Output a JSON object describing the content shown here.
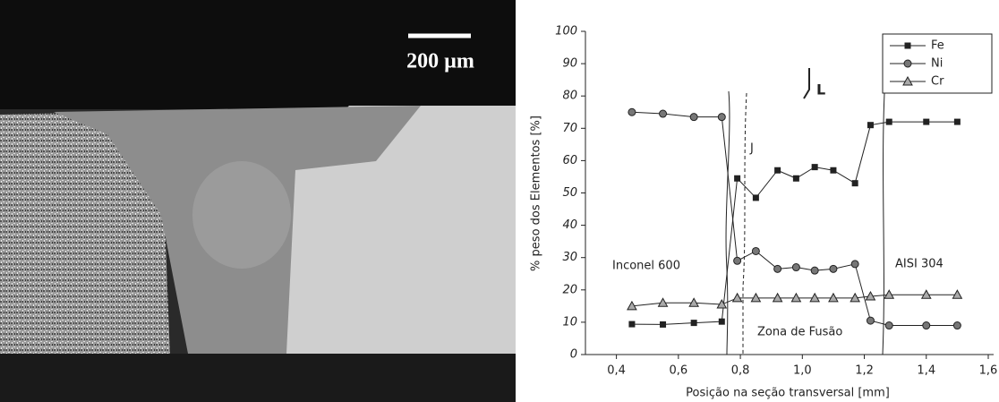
{
  "micrograph": {
    "scale_label": "200 µm"
  },
  "chart_data": {
    "type": "line",
    "x_label": "Posição na seção transversal [mm]",
    "y_label": "% peso dos Elementos [%]",
    "x": [
      0.45,
      0.55,
      0.65,
      0.74,
      0.79,
      0.85,
      0.92,
      0.98,
      1.04,
      1.1,
      1.17,
      1.22,
      1.28,
      1.4,
      1.5
    ],
    "series": [
      {
        "name": "Fe",
        "color": "#222222",
        "marker": "square",
        "values": [
          9.4,
          9.3,
          9.8,
          10.2,
          54.5,
          48.5,
          57,
          54.5,
          58,
          57,
          53,
          71,
          72,
          72,
          72
        ]
      },
      {
        "name": "Ni",
        "color": "#222222",
        "marker": "circle",
        "values": [
          75,
          74.5,
          73.5,
          73.5,
          29,
          32,
          26.5,
          27,
          26,
          26.5,
          28,
          10.5,
          9,
          9,
          9
        ]
      },
      {
        "name": "Cr",
        "color": "#222222",
        "marker": "triangle",
        "values": [
          15,
          16,
          16,
          15.5,
          17.5,
          17.5,
          17.5,
          17.5,
          17.5,
          17.5,
          17.5,
          18,
          18.5,
          18.5,
          18.5
        ]
      }
    ],
    "xlim": [
      0.3,
      1.6
    ],
    "xticks": [
      {
        "value": 0.4,
        "label": "0,4"
      },
      {
        "value": 0.6,
        "label": "0,6"
      },
      {
        "value": 0.8,
        "label": "0,8"
      },
      {
        "value": 1.0,
        "label": "1,0"
      },
      {
        "value": 1.2,
        "label": "1,2"
      },
      {
        "value": 1.4,
        "label": "1,4"
      },
      {
        "value": 1.6,
        "label": "1,6"
      }
    ],
    "ylim": [
      0,
      100
    ],
    "yticks": [
      0,
      10,
      20,
      30,
      40,
      50,
      60,
      70,
      80,
      90,
      100
    ],
    "legend": "top-right",
    "annotations": [
      "Inconel 600",
      "AISI 304",
      "Zona de Fusão",
      "J",
      "L"
    ]
  }
}
